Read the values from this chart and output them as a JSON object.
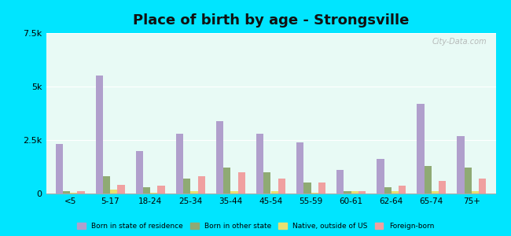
{
  "title": "Place of birth by age - Strongsville",
  "categories": [
    "<5",
    "5-17",
    "18-24",
    "25-34",
    "35-44",
    "45-54",
    "55-59",
    "60-61",
    "62-64",
    "65-74",
    "75+"
  ],
  "series": {
    "Born in state of residence": [
      2300,
      5500,
      2000,
      2800,
      3400,
      2800,
      2400,
      1100,
      1600,
      4200,
      2700
    ],
    "Born in other state": [
      100,
      800,
      300,
      700,
      1200,
      1000,
      500,
      100,
      300,
      1300,
      1200
    ],
    "Native, outside of US": [
      50,
      200,
      50,
      100,
      100,
      100,
      50,
      100,
      100,
      100,
      100
    ],
    "Foreign-born": [
      100,
      400,
      350,
      800,
      1000,
      700,
      500,
      100,
      350,
      600,
      700
    ]
  },
  "colors": {
    "Born in state of residence": "#b09fcc",
    "Born in other state": "#8faa74",
    "Native, outside of US": "#e8e070",
    "Foreign-born": "#f0a0a0"
  },
  "ylim": [
    0,
    7500
  ],
  "yticks": [
    0,
    2500,
    5000,
    7500
  ],
  "ytick_labels": [
    "0",
    "2.5k",
    "5k",
    "7.5k"
  ],
  "background_color": "#e8faf5",
  "figure_background": "#00e5ff",
  "bar_width": 0.18,
  "legend_labels": [
    "Born in state of residence",
    "Born in other state",
    "Native, outside of US",
    "Foreign-born"
  ]
}
